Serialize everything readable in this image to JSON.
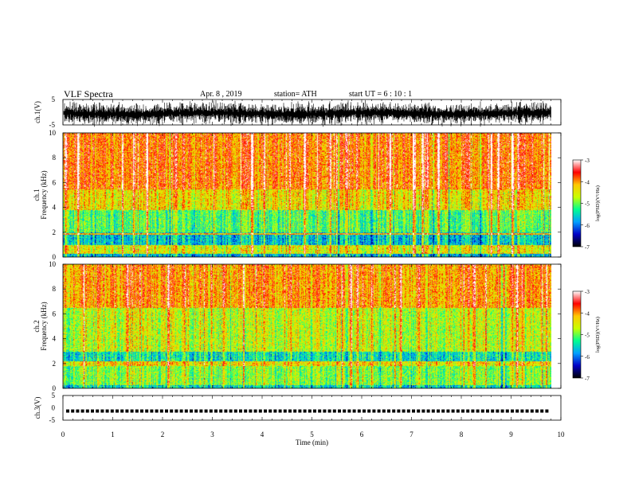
{
  "header": {
    "title": "VLF  Spectra",
    "date": "Apr. 8  , 2019",
    "station": "station= ATH",
    "start_ut": "start  UT  =    6  : 10 : 1"
  },
  "chart_data": [
    {
      "type": "line",
      "panel": "ch1-waveform",
      "ylabel": "ch.1(V)",
      "yticks": [
        "5",
        "-5"
      ],
      "ylim": [
        -5,
        5
      ],
      "color": "#000000"
    },
    {
      "type": "heatmap",
      "panel": "ch1-spectrogram",
      "ylabel_line1": "ch.1",
      "ylabel_line2": "Frequency  (kHz)",
      "yticks": [
        "0",
        "2",
        "4",
        "6",
        "8",
        "10"
      ],
      "ylim": [
        0,
        10
      ],
      "xlim": [
        0,
        9.8
      ],
      "colorbar": {
        "label": "log(PSD)(V²/Hz)",
        "ticks": [
          "-3",
          "-4",
          "-5",
          "-6",
          "-7"
        ],
        "range": [
          -7,
          -3
        ]
      }
    },
    {
      "type": "heatmap",
      "panel": "ch2-spectrogram",
      "ylabel_line1": "ch.2",
      "ylabel_line2": "Frequency  (kHz)",
      "yticks": [
        "0",
        "2",
        "4",
        "6",
        "8",
        "10"
      ],
      "ylim": [
        0,
        10
      ],
      "xlim": [
        0,
        9.8
      ],
      "colorbar": {
        "label": "log(PSD)(V²/Hz)",
        "ticks": [
          "-3",
          "-4",
          "-5",
          "-6",
          "-7"
        ],
        "range": [
          -7,
          -3
        ]
      }
    },
    {
      "type": "line",
      "panel": "ch3-waveform",
      "ylabel": "ch.3(V)",
      "yticks": [
        "5",
        "0",
        "-5"
      ],
      "ylim": [
        -5,
        5
      ],
      "level": -1.3,
      "color": "#000000"
    }
  ],
  "xaxis": {
    "label": "Time  (min)",
    "ticks": [
      "0",
      "1",
      "2",
      "3",
      "4",
      "5",
      "6",
      "7",
      "8",
      "9",
      "10"
    ],
    "range": [
      0,
      10
    ]
  },
  "colormap": [
    "#000000",
    "#0000c8",
    "#00a0ff",
    "#00ff90",
    "#c8ff00",
    "#ffc800",
    "#ff0000",
    "#ffffff"
  ]
}
